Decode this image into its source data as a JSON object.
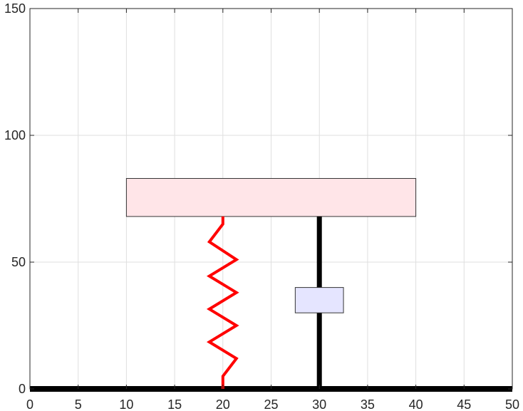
{
  "chart_data": {
    "type": "diagram",
    "title": "",
    "xlabel": "",
    "ylabel": "",
    "xlim": [
      0,
      50
    ],
    "ylim": [
      0,
      150
    ],
    "x_ticks": [
      "0",
      "5",
      "10",
      "15",
      "20",
      "25",
      "30",
      "35",
      "40",
      "45",
      "50"
    ],
    "y_ticks": [
      "0",
      "50",
      "100",
      "150"
    ],
    "grid": true,
    "ground": {
      "x_from": 0,
      "x_to": 50,
      "y": 0,
      "color": "#000000"
    },
    "mass": {
      "x_from": 10,
      "x_to": 40,
      "y_from": 68,
      "y_to": 83,
      "fill": "#ffe5e8",
      "stroke": "#333333"
    },
    "spring": {
      "color": "#ff0000",
      "points": [
        [
          20,
          0
        ],
        [
          20,
          5
        ],
        [
          21.4,
          12
        ],
        [
          18.6,
          18.5
        ],
        [
          21.4,
          25
        ],
        [
          18.6,
          31.5
        ],
        [
          21.4,
          38
        ],
        [
          18.6,
          44.5
        ],
        [
          21.4,
          51
        ],
        [
          18.6,
          58
        ],
        [
          20,
          65
        ],
        [
          20,
          68
        ]
      ]
    },
    "damper": {
      "color": "#000000",
      "x": 30,
      "y_from": 0,
      "y_to": 68,
      "piston": {
        "x_from": 27.5,
        "x_to": 32.5,
        "y_from": 30,
        "y_to": 40,
        "fill": "#e5e5ff",
        "stroke": "#333333"
      }
    }
  }
}
